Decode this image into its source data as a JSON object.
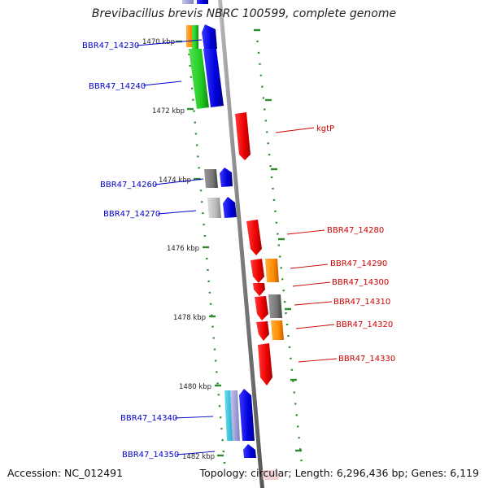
{
  "title": "Brevibacillus brevis NBRC 100599, complete genome",
  "footer": {
    "accession": "Accession: NC_012491",
    "summary": "Topology: circular; Length: 6,296,436 bp; Genes: 6,119"
  },
  "ticks": [
    "1470 kbp",
    "1472 kbp",
    "1474 kbp",
    "1476 kbp",
    "1478 kbp",
    "1480 kbp",
    "1482 kbp"
  ],
  "genes_left": [
    {
      "name": "BBR47_14230",
      "color": "#0000cc"
    },
    {
      "name": "BBR47_14240",
      "color": "#0000cc"
    },
    {
      "name": "BBR47_14260",
      "color": "#0000cc"
    },
    {
      "name": "BBR47_14270",
      "color": "#0000cc"
    },
    {
      "name": "BBR47_14340",
      "color": "#0000cc"
    },
    {
      "name": "BBR47_14350",
      "color": "#0000cc"
    }
  ],
  "genes_right": [
    {
      "name": "kgtP",
      "color": "#cc0000"
    },
    {
      "name": "BBR47_14280",
      "color": "#cc0000"
    },
    {
      "name": "BBR47_14290",
      "color": "#cc0000"
    },
    {
      "name": "BBR47_14300",
      "color": "#cc0000"
    },
    {
      "name": "BBR47_14310",
      "color": "#cc0000"
    },
    {
      "name": "BBR47_14320",
      "color": "#cc0000"
    },
    {
      "name": "BBR47_14330",
      "color": "#cc0000"
    }
  ],
  "colors": {
    "backbone": "#8a8a8a",
    "dots": "#2e8b2e",
    "forward_strand": "#1a1aee",
    "reverse_strand": "#ee1111",
    "green_gene": "#33cc33",
    "orange_gene": "#ff8c00",
    "grey_gene": "#777777"
  }
}
